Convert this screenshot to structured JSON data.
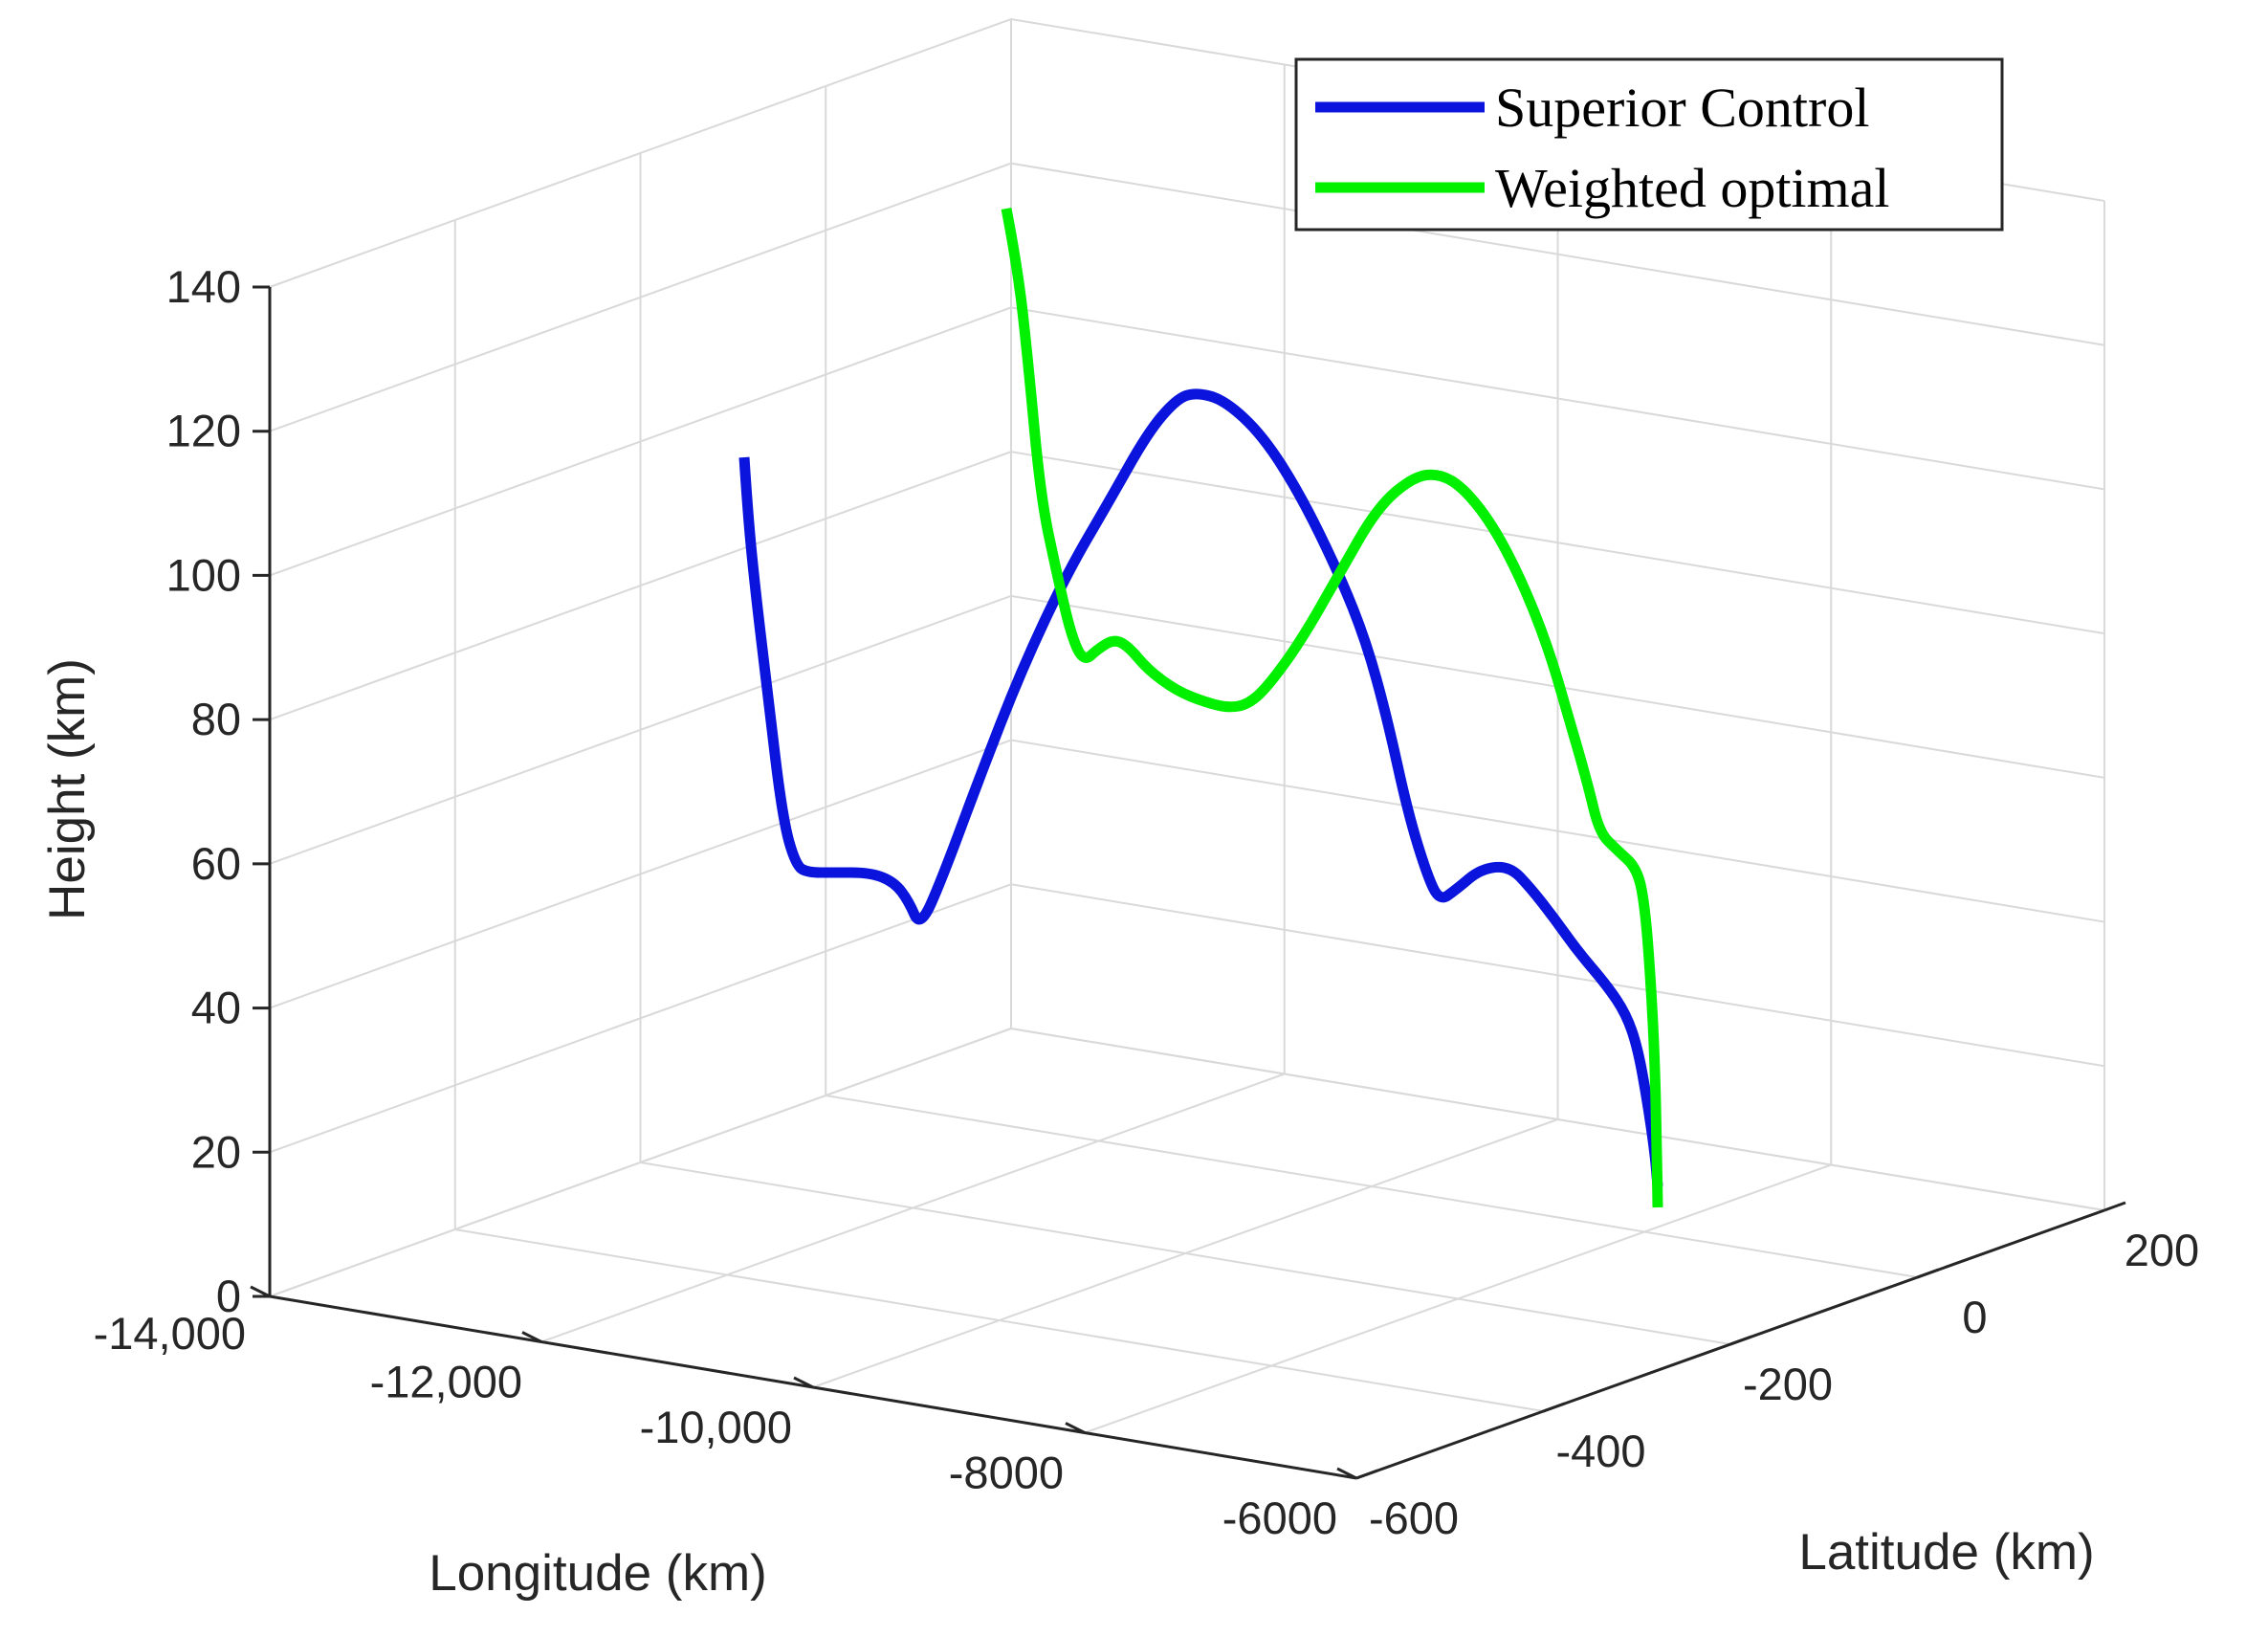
{
  "chart_data": {
    "type": "line",
    "projection": "3d",
    "xlabel": "Longitude (km)",
    "ylabel": "Latitude (km)",
    "zlabel": "Height (km)",
    "x_ticks": [
      "-14,000",
      "-12,000",
      "-10,000",
      "-8000",
      "-6000"
    ],
    "y_ticks": [
      "-600",
      "-400",
      "-200",
      "0",
      "200"
    ],
    "z_ticks": [
      "0",
      "20",
      "40",
      "60",
      "80",
      "100",
      "120",
      "140"
    ],
    "grid": true,
    "legend_position": "top-right",
    "colors": {
      "grid": "#d9d9d9",
      "axis": "#262626"
    },
    "series": [
      {
        "name": "Superior Control",
        "color": "#0a14dc",
        "projected_path": [
          [
            778,
            478
          ],
          [
            782,
            540
          ],
          [
            790,
            620
          ],
          [
            802,
            720
          ],
          [
            818,
            855
          ],
          [
            832,
            905
          ],
          [
            845,
            912
          ],
          [
            870,
            912
          ],
          [
            910,
            912
          ],
          [
            935,
            922
          ],
          [
            950,
            942
          ],
          [
            962,
            970
          ],
          [
            985,
            918
          ],
          [
            1025,
            810
          ],
          [
            1068,
            700
          ],
          [
            1115,
            600
          ],
          [
            1160,
            523
          ],
          [
            1200,
            452
          ],
          [
            1230,
            417
          ],
          [
            1250,
            410
          ],
          [
            1280,
            418
          ],
          [
            1320,
            455
          ],
          [
            1360,
            518
          ],
          [
            1400,
            600
          ],
          [
            1428,
            670
          ],
          [
            1450,
            750
          ],
          [
            1472,
            850
          ],
          [
            1492,
            915
          ],
          [
            1505,
            942
          ],
          [
            1522,
            930
          ],
          [
            1548,
            908
          ],
          [
            1578,
            905
          ],
          [
            1600,
            928
          ],
          [
            1625,
            960
          ],
          [
            1650,
            995
          ],
          [
            1680,
            1030
          ],
          [
            1700,
            1060
          ],
          [
            1712,
            1095
          ],
          [
            1722,
            1150
          ],
          [
            1730,
            1205
          ],
          [
            1733,
            1240
          ]
        ]
      },
      {
        "name": "Weighted optimal",
        "color": "#00f000",
        "projected_path": [
          [
            1052,
            218
          ],
          [
            1064,
            280
          ],
          [
            1075,
            380
          ],
          [
            1088,
            520
          ],
          [
            1105,
            600
          ],
          [
            1120,
            665
          ],
          [
            1133,
            692
          ],
          [
            1148,
            678
          ],
          [
            1165,
            668
          ],
          [
            1180,
            676
          ],
          [
            1200,
            700
          ],
          [
            1230,
            722
          ],
          [
            1260,
            734
          ],
          [
            1285,
            740
          ],
          [
            1305,
            736
          ],
          [
            1325,
            718
          ],
          [
            1360,
            670
          ],
          [
            1400,
            600
          ],
          [
            1440,
            530
          ],
          [
            1478,
            498
          ],
          [
            1505,
            495
          ],
          [
            1530,
            510
          ],
          [
            1560,
            548
          ],
          [
            1590,
            605
          ],
          [
            1618,
            675
          ],
          [
            1640,
            750
          ],
          [
            1660,
            820
          ],
          [
            1672,
            870
          ],
          [
            1690,
            888
          ],
          [
            1712,
            908
          ],
          [
            1720,
            950
          ],
          [
            1726,
            1030
          ],
          [
            1730,
            1110
          ],
          [
            1732,
            1200
          ],
          [
            1733,
            1262
          ]
        ]
      }
    ]
  }
}
